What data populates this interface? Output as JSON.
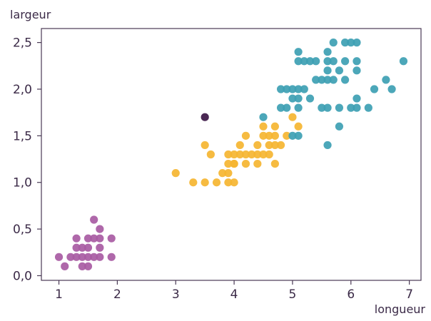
{
  "chart_data": {
    "type": "scatter",
    "xlabel": "longueur",
    "ylabel": "largeur",
    "xlim": [
      0.7,
      7.2
    ],
    "ylim": [
      -0.05,
      2.65
    ],
    "xticks": [
      {
        "value": 1,
        "label": "1"
      },
      {
        "value": 2,
        "label": "2"
      },
      {
        "value": 3,
        "label": "3"
      },
      {
        "value": 4,
        "label": "4"
      },
      {
        "value": 5,
        "label": "5"
      },
      {
        "value": 6,
        "label": "6"
      },
      {
        "value": 7,
        "label": "7"
      }
    ],
    "yticks": [
      {
        "value": 0.0,
        "label": "0,0"
      },
      {
        "value": 0.5,
        "label": "0,5"
      },
      {
        "value": 1.0,
        "label": "1,0"
      },
      {
        "value": 1.5,
        "label": "1,5"
      },
      {
        "value": 2.0,
        "label": "2,0"
      },
      {
        "value": 2.5,
        "label": "2,5"
      }
    ],
    "grid": false,
    "series": [
      {
        "color": "#a85ba3",
        "points": [
          [
            1.0,
            0.2
          ],
          [
            1.1,
            0.1
          ],
          [
            1.2,
            0.2
          ],
          [
            1.3,
            0.2
          ],
          [
            1.4,
            0.2
          ],
          [
            1.5,
            0.2
          ],
          [
            1.6,
            0.2
          ],
          [
            1.7,
            0.2
          ],
          [
            1.9,
            0.2
          ],
          [
            1.4,
            0.1
          ],
          [
            1.5,
            0.1
          ],
          [
            1.3,
            0.3
          ],
          [
            1.4,
            0.3
          ],
          [
            1.5,
            0.3
          ],
          [
            1.7,
            0.3
          ],
          [
            1.3,
            0.4
          ],
          [
            1.5,
            0.4
          ],
          [
            1.6,
            0.4
          ],
          [
            1.7,
            0.4
          ],
          [
            1.9,
            0.4
          ],
          [
            1.7,
            0.5
          ],
          [
            1.6,
            0.6
          ]
        ]
      },
      {
        "color": "#f5b531",
        "points": [
          [
            3.0,
            1.1
          ],
          [
            3.3,
            1.0
          ],
          [
            3.5,
            1.0
          ],
          [
            3.7,
            1.0
          ],
          [
            3.9,
            1.0
          ],
          [
            4.0,
            1.0
          ],
          [
            3.8,
            1.1
          ],
          [
            3.9,
            1.1
          ],
          [
            3.6,
            1.3
          ],
          [
            3.9,
            1.3
          ],
          [
            4.0,
            1.3
          ],
          [
            4.1,
            1.3
          ],
          [
            4.2,
            1.3
          ],
          [
            4.3,
            1.3
          ],
          [
            4.4,
            1.3
          ],
          [
            4.5,
            1.3
          ],
          [
            4.6,
            1.3
          ],
          [
            3.9,
            1.2
          ],
          [
            4.0,
            1.2
          ],
          [
            4.2,
            1.2
          ],
          [
            4.4,
            1.2
          ],
          [
            4.7,
            1.2
          ],
          [
            3.5,
            1.4
          ],
          [
            4.1,
            1.4
          ],
          [
            4.4,
            1.4
          ],
          [
            4.6,
            1.4
          ],
          [
            4.7,
            1.4
          ],
          [
            4.8,
            1.4
          ],
          [
            4.0,
            1.2
          ],
          [
            4.5,
            1.5
          ],
          [
            4.6,
            1.5
          ],
          [
            4.7,
            1.5
          ],
          [
            4.9,
            1.5
          ],
          [
            4.2,
            1.5
          ],
          [
            4.5,
            1.6
          ],
          [
            4.7,
            1.6
          ],
          [
            5.1,
            1.6
          ],
          [
            5.0,
            1.7
          ]
        ]
      },
      {
        "color": "#3d9fb3",
        "points": [
          [
            4.5,
            1.7
          ],
          [
            4.9,
            1.8
          ],
          [
            5.0,
            1.5
          ],
          [
            5.1,
            1.5
          ],
          [
            4.8,
            1.8
          ],
          [
            5.1,
            1.8
          ],
          [
            5.5,
            1.8
          ],
          [
            5.6,
            1.8
          ],
          [
            5.8,
            1.8
          ],
          [
            6.0,
            1.8
          ],
          [
            6.1,
            1.8
          ],
          [
            6.3,
            1.8
          ],
          [
            5.0,
            1.9
          ],
          [
            5.1,
            1.9
          ],
          [
            5.3,
            1.9
          ],
          [
            6.1,
            1.9
          ],
          [
            4.8,
            2.0
          ],
          [
            4.9,
            2.0
          ],
          [
            5.0,
            2.0
          ],
          [
            5.1,
            2.0
          ],
          [
            5.2,
            2.0
          ],
          [
            6.4,
            2.0
          ],
          [
            6.7,
            2.0
          ],
          [
            5.4,
            2.1
          ],
          [
            5.5,
            2.1
          ],
          [
            5.6,
            2.1
          ],
          [
            5.7,
            2.1
          ],
          [
            5.9,
            2.1
          ],
          [
            6.6,
            2.1
          ],
          [
            5.6,
            2.2
          ],
          [
            5.8,
            2.2
          ],
          [
            6.1,
            2.2
          ],
          [
            5.1,
            2.3
          ],
          [
            5.2,
            2.3
          ],
          [
            5.3,
            2.3
          ],
          [
            5.4,
            2.3
          ],
          [
            5.6,
            2.3
          ],
          [
            5.7,
            2.3
          ],
          [
            5.9,
            2.3
          ],
          [
            6.1,
            2.3
          ],
          [
            6.9,
            2.3
          ],
          [
            5.1,
            2.4
          ],
          [
            5.6,
            2.4
          ],
          [
            6.1,
            2.5
          ],
          [
            5.7,
            2.5
          ],
          [
            5.9,
            2.5
          ],
          [
            6.0,
            2.5
          ],
          [
            5.6,
            1.4
          ],
          [
            5.8,
            1.6
          ]
        ]
      },
      {
        "color": "#3b1645",
        "points": [
          [
            3.5,
            1.7
          ]
        ]
      }
    ]
  }
}
